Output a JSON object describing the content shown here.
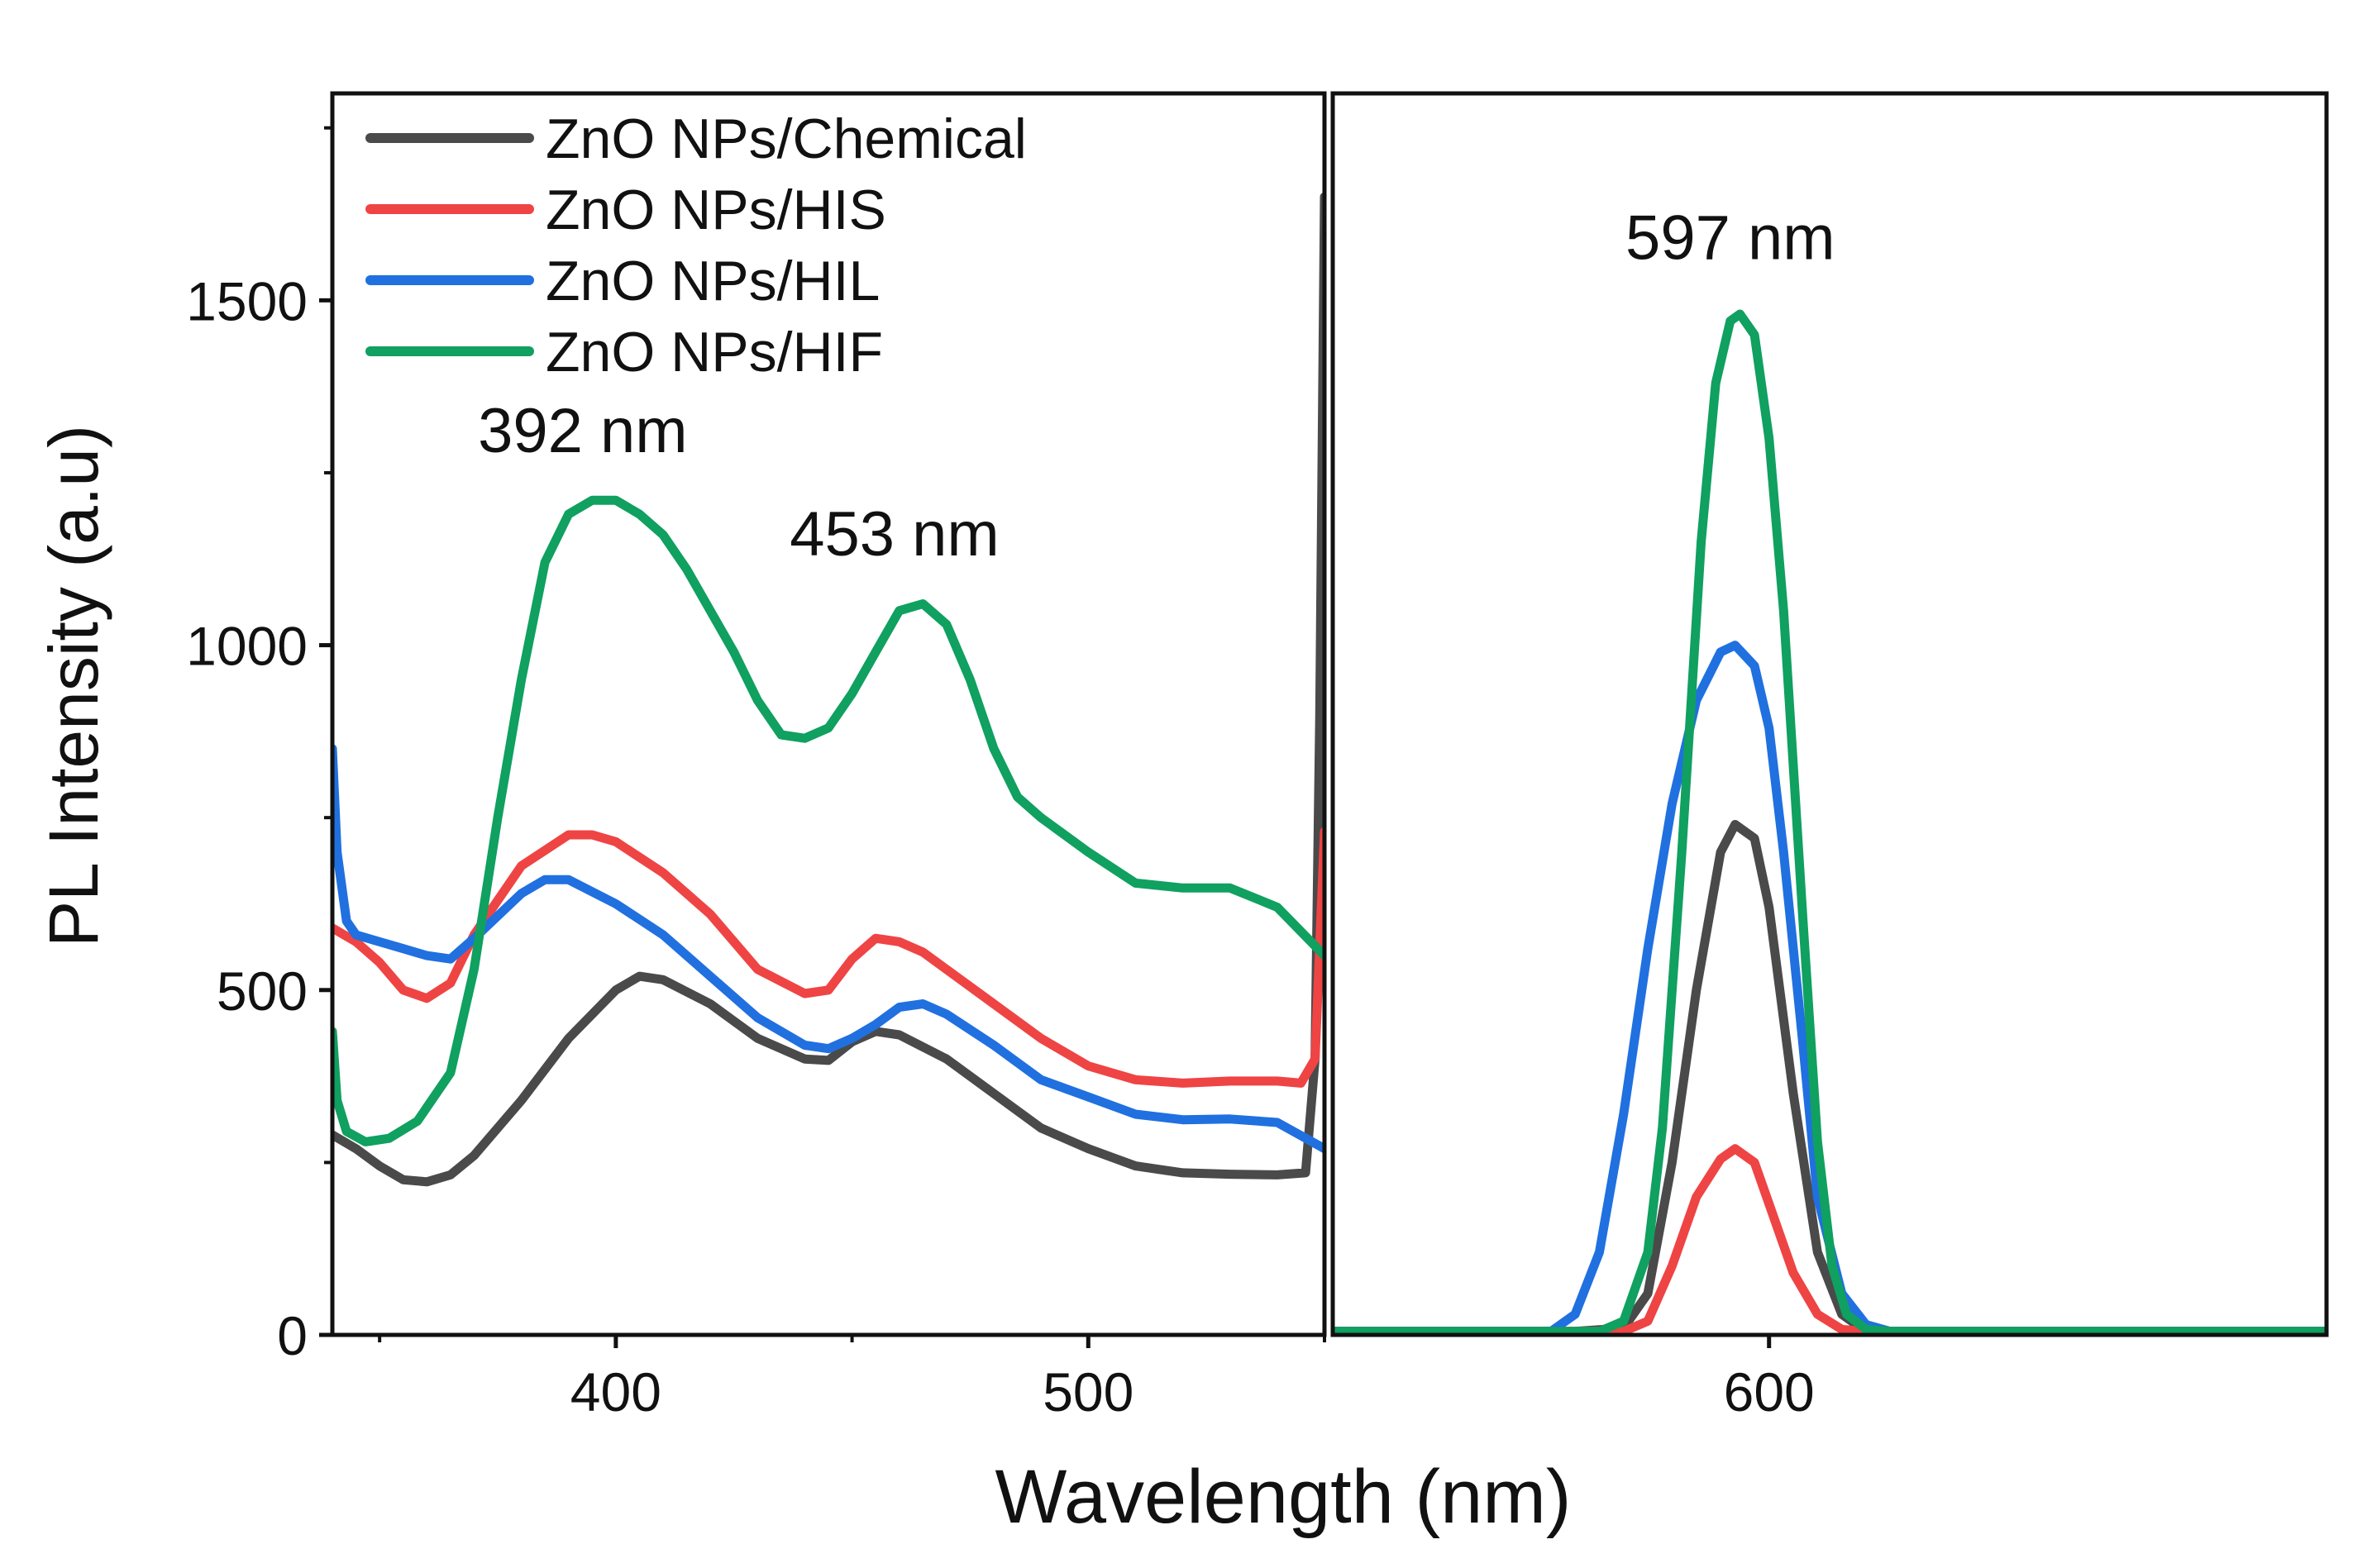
{
  "chart_data": {
    "type": "line",
    "ylabel": "PL Intensity (a.u)",
    "xlabel": "Wavelength (nm)",
    "ylim": [
      0,
      1800
    ],
    "y_ticks": [
      0,
      500,
      1000,
      1500
    ],
    "y_tick_labels": [
      "0",
      "500",
      "1000",
      "1500"
    ],
    "legend_position": "top-left",
    "panels": [
      {
        "name": "left",
        "xlim": [
          340,
          550
        ],
        "x_ticks": [
          400,
          500
        ],
        "x_tick_labels": [
          "400",
          "500"
        ],
        "annotations": [
          {
            "text": "392 nm",
            "x": 393,
            "y": 1280
          },
          {
            "text": "453 nm",
            "x": 459,
            "y": 1130
          }
        ]
      },
      {
        "name": "right",
        "xlim": [
          510,
          715
        ],
        "x_ticks": [
          600
        ],
        "x_tick_labels": [
          "600"
        ],
        "annotations": [
          {
            "text": "597 nm",
            "x": 592,
            "y": 1560
          }
        ]
      }
    ],
    "series": [
      {
        "name": "ZnO NPs/Chemical",
        "color": "#4a4a4a",
        "segments": [
          {
            "panel": 0,
            "points": [
              [
                340,
                290
              ],
              [
                345,
                270
              ],
              [
                350,
                245
              ],
              [
                355,
                225
              ],
              [
                360,
                222
              ],
              [
                365,
                232
              ],
              [
                370,
                260
              ],
              [
                380,
                340
              ],
              [
                390,
                430
              ],
              [
                400,
                500
              ],
              [
                405,
                520
              ],
              [
                410,
                515
              ],
              [
                420,
                480
              ],
              [
                430,
                430
              ],
              [
                440,
                400
              ],
              [
                445,
                398
              ],
              [
                450,
                425
              ],
              [
                455,
                440
              ],
              [
                460,
                435
              ],
              [
                470,
                400
              ],
              [
                480,
                350
              ],
              [
                490,
                300
              ],
              [
                500,
                270
              ],
              [
                510,
                245
              ],
              [
                520,
                235
              ],
              [
                530,
                233
              ],
              [
                540,
                232
              ],
              [
                546,
                235
              ],
              [
                548,
                400
              ],
              [
                549,
                900
              ],
              [
                550,
                1650
              ]
            ]
          },
          {
            "panel": 1,
            "points": [
              [
                510,
                5
              ],
              [
                560,
                5
              ],
              [
                570,
                10
              ],
              [
                575,
                60
              ],
              [
                580,
                250
              ],
              [
                585,
                500
              ],
              [
                590,
                700
              ],
              [
                593,
                740
              ],
              [
                597,
                720
              ],
              [
                600,
                620
              ],
              [
                605,
                350
              ],
              [
                610,
                120
              ],
              [
                615,
                30
              ],
              [
                620,
                5
              ],
              [
                715,
                5
              ]
            ]
          }
        ]
      },
      {
        "name": "ZnO NPs/HIS",
        "color": "#ef4444",
        "segments": [
          {
            "panel": 0,
            "points": [
              [
                340,
                590
              ],
              [
                345,
                570
              ],
              [
                350,
                540
              ],
              [
                355,
                500
              ],
              [
                360,
                488
              ],
              [
                365,
                510
              ],
              [
                370,
                580
              ],
              [
                380,
                680
              ],
              [
                390,
                725
              ],
              [
                395,
                725
              ],
              [
                400,
                715
              ],
              [
                410,
                670
              ],
              [
                420,
                610
              ],
              [
                430,
                530
              ],
              [
                440,
                495
              ],
              [
                445,
                500
              ],
              [
                450,
                545
              ],
              [
                455,
                575
              ],
              [
                460,
                570
              ],
              [
                465,
                555
              ],
              [
                480,
                480
              ],
              [
                490,
                430
              ],
              [
                500,
                390
              ],
              [
                510,
                370
              ],
              [
                520,
                365
              ],
              [
                530,
                368
              ],
              [
                540,
                368
              ],
              [
                545,
                365
              ],
              [
                548,
                400
              ],
              [
                550,
                730
              ]
            ]
          },
          {
            "panel": 1,
            "points": [
              [
                510,
                5
              ],
              [
                570,
                5
              ],
              [
                575,
                20
              ],
              [
                580,
                100
              ],
              [
                585,
                200
              ],
              [
                590,
                255
              ],
              [
                593,
                270
              ],
              [
                597,
                250
              ],
              [
                600,
                190
              ],
              [
                605,
                90
              ],
              [
                610,
                30
              ],
              [
                615,
                8
              ],
              [
                620,
                5
              ],
              [
                715,
                5
              ]
            ]
          }
        ]
      },
      {
        "name": "ZnO NPs/HIL",
        "color": "#2070e0",
        "segments": [
          {
            "panel": 0,
            "points": [
              [
                340,
                850
              ],
              [
                341,
                700
              ],
              [
                343,
                600
              ],
              [
                345,
                580
              ],
              [
                350,
                570
              ],
              [
                355,
                560
              ],
              [
                360,
                550
              ],
              [
                365,
                545
              ],
              [
                370,
                575
              ],
              [
                380,
                640
              ],
              [
                385,
                660
              ],
              [
                390,
                660
              ],
              [
                400,
                625
              ],
              [
                410,
                580
              ],
              [
                420,
                520
              ],
              [
                430,
                460
              ],
              [
                440,
                420
              ],
              [
                445,
                415
              ],
              [
                450,
                430
              ],
              [
                455,
                450
              ],
              [
                460,
                475
              ],
              [
                465,
                480
              ],
              [
                470,
                465
              ],
              [
                480,
                420
              ],
              [
                490,
                370
              ],
              [
                500,
                345
              ],
              [
                510,
                320
              ],
              [
                520,
                312
              ],
              [
                530,
                313
              ],
              [
                540,
                308
              ],
              [
                550,
                270
              ]
            ]
          },
          {
            "panel": 1,
            "points": [
              [
                510,
                5
              ],
              [
                555,
                5
              ],
              [
                560,
                30
              ],
              [
                565,
                120
              ],
              [
                570,
                320
              ],
              [
                575,
                560
              ],
              [
                580,
                770
              ],
              [
                585,
                920
              ],
              [
                590,
                990
              ],
              [
                593,
                1000
              ],
              [
                597,
                970
              ],
              [
                600,
                880
              ],
              [
                603,
                700
              ],
              [
                607,
                420
              ],
              [
                610,
                200
              ],
              [
                615,
                60
              ],
              [
                620,
                15
              ],
              [
                625,
                5
              ],
              [
                715,
                5
              ]
            ]
          }
        ]
      },
      {
        "name": "ZnO NPs/HIF",
        "color": "#10a060",
        "segments": [
          {
            "panel": 0,
            "points": [
              [
                340,
                440
              ],
              [
                341,
                340
              ],
              [
                343,
                295
              ],
              [
                347,
                280
              ],
              [
                352,
                285
              ],
              [
                358,
                310
              ],
              [
                365,
                380
              ],
              [
                370,
                530
              ],
              [
                375,
                750
              ],
              [
                380,
                950
              ],
              [
                385,
                1120
              ],
              [
                390,
                1190
              ],
              [
                395,
                1210
              ],
              [
                400,
                1210
              ],
              [
                405,
                1190
              ],
              [
                410,
                1160
              ],
              [
                415,
                1110
              ],
              [
                420,
                1050
              ],
              [
                425,
                990
              ],
              [
                430,
                920
              ],
              [
                435,
                870
              ],
              [
                440,
                865
              ],
              [
                445,
                880
              ],
              [
                450,
                930
              ],
              [
                455,
                990
              ],
              [
                460,
                1050
              ],
              [
                465,
                1060
              ],
              [
                470,
                1030
              ],
              [
                475,
                950
              ],
              [
                480,
                850
              ],
              [
                485,
                780
              ],
              [
                490,
                750
              ],
              [
                500,
                700
              ],
              [
                510,
                655
              ],
              [
                520,
                648
              ],
              [
                530,
                648
              ],
              [
                540,
                620
              ],
              [
                550,
                550
              ]
            ]
          },
          {
            "panel": 1,
            "points": [
              [
                510,
                5
              ],
              [
                565,
                5
              ],
              [
                570,
                20
              ],
              [
                575,
                120
              ],
              [
                578,
                300
              ],
              [
                582,
                700
              ],
              [
                586,
                1150
              ],
              [
                589,
                1380
              ],
              [
                592,
                1470
              ],
              [
                594,
                1480
              ],
              [
                597,
                1450
              ],
              [
                600,
                1300
              ],
              [
                603,
                1050
              ],
              [
                607,
                600
              ],
              [
                610,
                280
              ],
              [
                613,
                100
              ],
              [
                616,
                30
              ],
              [
                620,
                8
              ],
              [
                625,
                5
              ],
              [
                715,
                5
              ]
            ]
          }
        ]
      }
    ]
  }
}
